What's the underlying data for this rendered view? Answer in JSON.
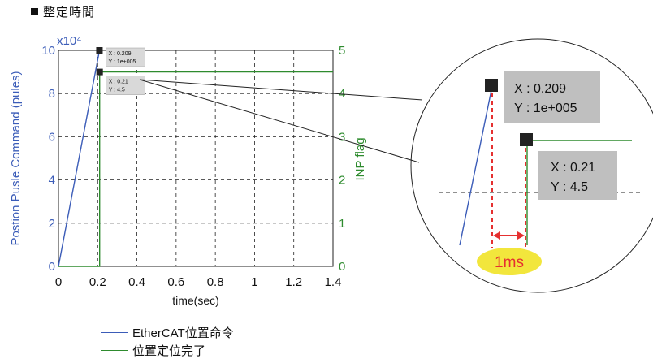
{
  "title": "整定時間",
  "legend": [
    {
      "label": "EtherCAT位置命令",
      "color": "#3b5cb8"
    },
    {
      "label": "位置定位完了",
      "color": "#2e8b2e"
    }
  ],
  "chart_data": {
    "type": "line",
    "xlabel": "time(sec)",
    "ylabel_left": "Postion Pusle Command (pules)",
    "ylabel_right": "INP flag",
    "x_ticks": [
      "0",
      "0.2",
      "0.4",
      "0.6",
      "0.8",
      "1",
      "1.2",
      "1.4"
    ],
    "y_left_ticks": [
      "0",
      "2",
      "4",
      "6",
      "8",
      "10"
    ],
    "y_left_multiplier": "x10⁴",
    "y_right_ticks": [
      "0",
      "1",
      "2",
      "3",
      "4",
      "5"
    ],
    "xlim": [
      0,
      1.4
    ],
    "ylim_left": [
      0,
      100000
    ],
    "ylim_right": [
      0,
      5
    ],
    "grid": true,
    "series": [
      {
        "name": "EtherCAT位置命令",
        "axis": "left",
        "color": "#3b5cb8",
        "x": [
          0,
          0.209,
          0.209
        ],
        "y": [
          0,
          100000,
          100000
        ]
      },
      {
        "name": "位置定位完了",
        "axis": "right",
        "color": "#2e8b2e",
        "x": [
          0,
          0.21,
          0.21,
          1.4
        ],
        "y": [
          0,
          0,
          4.5,
          4.5
        ]
      }
    ],
    "datatips": [
      {
        "x_label": "X : 0.209",
        "y_label": "Y : 1e+005",
        "x": 0.209,
        "y": 100000,
        "axis": "left"
      },
      {
        "x_label": "X : 0.21",
        "y_label": "Y : 4.5",
        "x": 0.21,
        "y": 4.5,
        "axis": "right"
      }
    ],
    "zoom_annotation": "1ms"
  }
}
